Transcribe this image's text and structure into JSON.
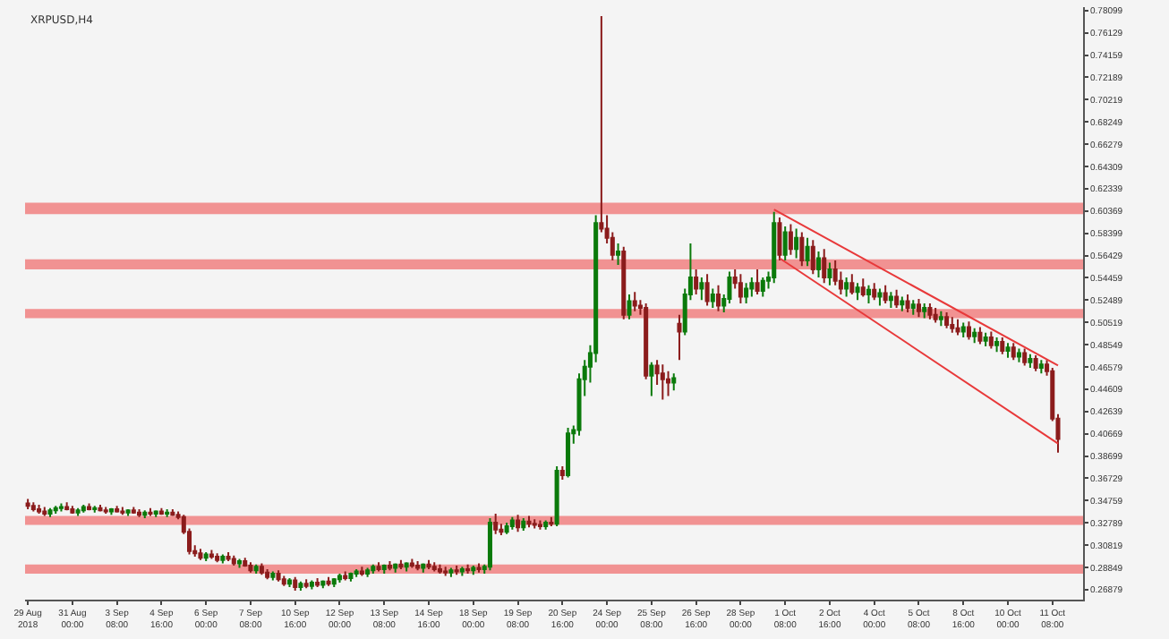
{
  "chart_data": {
    "type": "candlestick",
    "title": "XRPUSD,H4",
    "categories": [
      "29 Aug 2018",
      null,
      null,
      null,
      null,
      null,
      null,
      null,
      "31 Aug 00:00",
      null,
      null,
      null,
      null,
      null,
      null,
      null,
      "3 Sep 08:00",
      null,
      null,
      null,
      null,
      null,
      null,
      null,
      "4 Sep 16:00",
      null,
      null,
      null,
      null,
      null,
      null,
      null,
      "6 Sep 00:00",
      null,
      null,
      null,
      null,
      null,
      null,
      null,
      "7 Sep 08:00",
      null,
      null,
      null,
      null,
      null,
      null,
      null,
      "10 Sep 16:00",
      null,
      null,
      null,
      null,
      null,
      null,
      null,
      "12 Sep 00:00",
      null,
      null,
      null,
      null,
      null,
      null,
      null,
      "13 Sep 08:00",
      null,
      null,
      null,
      null,
      null,
      null,
      null,
      "14 Sep 16:00",
      null,
      null,
      null,
      null,
      null,
      null,
      null,
      "18 Sep 00:00",
      null,
      null,
      null,
      null,
      null,
      null,
      null,
      "19 Sep 08:00",
      null,
      null,
      null,
      null,
      null,
      null,
      null,
      "20 Sep 16:00",
      null,
      null,
      null,
      null,
      null,
      null,
      null,
      "24 Sep 00:00",
      null,
      null,
      null,
      null,
      null,
      null,
      null,
      "25 Sep 08:00",
      null,
      null,
      null,
      null,
      null,
      null,
      null,
      "26 Sep 16:00",
      null,
      null,
      null,
      null,
      null,
      null,
      null,
      "28 Sep 00:00",
      null,
      null,
      null,
      null,
      null,
      null,
      null,
      "1 Oct 08:00",
      null,
      null,
      null,
      null,
      null,
      null,
      null,
      "2 Oct 16:00",
      null,
      null,
      null,
      null,
      null,
      null,
      null,
      "4 Oct 00:00",
      null,
      null,
      null,
      null,
      null,
      null,
      null,
      "5 Oct 08:00",
      null,
      null,
      null,
      null,
      null,
      null,
      null,
      "8 Oct 16:00",
      null,
      null,
      null,
      null,
      null,
      null,
      null,
      "10 Oct 00:00",
      null,
      null,
      null,
      null,
      null,
      null,
      null,
      "11 Oct 08:00",
      null
    ],
    "ohlc": [
      [
        0.345,
        0.349,
        0.34,
        0.343
      ],
      [
        0.343,
        0.346,
        0.338,
        0.34
      ],
      [
        0.34,
        0.344,
        0.336,
        0.338
      ],
      [
        0.338,
        0.342,
        0.334,
        0.336
      ],
      [
        0.336,
        0.341,
        0.333,
        0.339
      ],
      [
        0.339,
        0.343,
        0.336,
        0.341
      ],
      [
        0.341,
        0.345,
        0.338,
        0.342
      ],
      [
        0.342,
        0.346,
        0.339,
        0.34
      ],
      [
        0.34,
        0.343,
        0.336,
        0.337
      ],
      [
        0.337,
        0.341,
        0.334,
        0.339
      ],
      [
        0.339,
        0.344,
        0.337,
        0.342
      ],
      [
        0.342,
        0.345,
        0.339,
        0.34
      ],
      [
        0.34,
        0.343,
        0.337,
        0.341
      ],
      [
        0.341,
        0.344,
        0.338,
        0.339
      ],
      [
        0.339,
        0.342,
        0.336,
        0.338
      ],
      [
        0.338,
        0.341,
        0.335,
        0.34
      ],
      [
        0.34,
        0.343,
        0.337,
        0.338
      ],
      [
        0.338,
        0.342,
        0.335,
        0.337
      ],
      [
        0.337,
        0.34,
        0.334,
        0.339
      ],
      [
        0.339,
        0.342,
        0.336,
        0.337
      ],
      [
        0.337,
        0.34,
        0.333,
        0.335
      ],
      [
        0.335,
        0.339,
        0.332,
        0.337
      ],
      [
        0.337,
        0.341,
        0.334,
        0.336
      ],
      [
        0.336,
        0.339,
        0.333,
        0.338
      ],
      [
        0.338,
        0.341,
        0.335,
        0.336
      ],
      [
        0.336,
        0.34,
        0.333,
        0.337
      ],
      [
        0.337,
        0.34,
        0.334,
        0.335
      ],
      [
        0.335,
        0.338,
        0.331,
        0.333
      ],
      [
        0.333,
        0.335,
        0.318,
        0.32
      ],
      [
        0.32,
        0.323,
        0.3,
        0.303
      ],
      [
        0.303,
        0.308,
        0.298,
        0.301
      ],
      [
        0.301,
        0.305,
        0.295,
        0.297
      ],
      [
        0.297,
        0.302,
        0.294,
        0.3
      ],
      [
        0.3,
        0.304,
        0.296,
        0.298
      ],
      [
        0.298,
        0.301,
        0.293,
        0.295
      ],
      [
        0.295,
        0.3,
        0.292,
        0.298
      ],
      [
        0.298,
        0.302,
        0.294,
        0.296
      ],
      [
        0.296,
        0.299,
        0.29,
        0.292
      ],
      [
        0.292,
        0.296,
        0.288,
        0.294
      ],
      [
        0.294,
        0.297,
        0.289,
        0.29
      ],
      [
        0.29,
        0.293,
        0.284,
        0.286
      ],
      [
        0.286,
        0.291,
        0.283,
        0.289
      ],
      [
        0.289,
        0.292,
        0.282,
        0.284
      ],
      [
        0.284,
        0.287,
        0.278,
        0.28
      ],
      [
        0.28,
        0.285,
        0.277,
        0.283
      ],
      [
        0.283,
        0.286,
        0.276,
        0.278
      ],
      [
        0.278,
        0.281,
        0.272,
        0.274
      ],
      [
        0.274,
        0.279,
        0.271,
        0.277
      ],
      [
        0.277,
        0.28,
        0.268,
        0.271
      ],
      [
        0.271,
        0.276,
        0.268,
        0.274
      ],
      [
        0.274,
        0.278,
        0.27,
        0.272
      ],
      [
        0.272,
        0.277,
        0.269,
        0.275
      ],
      [
        0.275,
        0.279,
        0.271,
        0.273
      ],
      [
        0.273,
        0.277,
        0.27,
        0.276
      ],
      [
        0.276,
        0.28,
        0.272,
        0.274
      ],
      [
        0.274,
        0.279,
        0.271,
        0.278
      ],
      [
        0.278,
        0.283,
        0.275,
        0.281
      ],
      [
        0.281,
        0.285,
        0.277,
        0.279
      ],
      [
        0.279,
        0.284,
        0.276,
        0.283
      ],
      [
        0.283,
        0.287,
        0.28,
        0.285
      ],
      [
        0.285,
        0.289,
        0.281,
        0.283
      ],
      [
        0.283,
        0.288,
        0.28,
        0.286
      ],
      [
        0.286,
        0.291,
        0.283,
        0.289
      ],
      [
        0.289,
        0.293,
        0.285,
        0.287
      ],
      [
        0.287,
        0.291,
        0.283,
        0.29
      ],
      [
        0.29,
        0.294,
        0.286,
        0.288
      ],
      [
        0.288,
        0.292,
        0.284,
        0.291
      ],
      [
        0.291,
        0.295,
        0.287,
        0.289
      ],
      [
        0.289,
        0.293,
        0.285,
        0.292
      ],
      [
        0.292,
        0.296,
        0.288,
        0.29
      ],
      [
        0.29,
        0.294,
        0.286,
        0.288
      ],
      [
        0.288,
        0.292,
        0.284,
        0.291
      ],
      [
        0.291,
        0.295,
        0.287,
        0.289
      ],
      [
        0.289,
        0.293,
        0.285,
        0.287
      ],
      [
        0.287,
        0.291,
        0.283,
        0.285
      ],
      [
        0.285,
        0.289,
        0.281,
        0.284
      ],
      [
        0.284,
        0.288,
        0.28,
        0.286
      ],
      [
        0.286,
        0.29,
        0.282,
        0.285
      ],
      [
        0.285,
        0.289,
        0.281,
        0.287
      ],
      [
        0.287,
        0.291,
        0.283,
        0.286
      ],
      [
        0.286,
        0.29,
        0.282,
        0.288
      ],
      [
        0.288,
        0.292,
        0.284,
        0.287
      ],
      [
        0.287,
        0.291,
        0.283,
        0.289
      ],
      [
        0.289,
        0.332,
        0.286,
        0.328
      ],
      [
        0.328,
        0.336,
        0.318,
        0.322
      ],
      [
        0.322,
        0.327,
        0.317,
        0.32
      ],
      [
        0.32,
        0.328,
        0.318,
        0.325
      ],
      [
        0.325,
        0.333,
        0.322,
        0.33
      ],
      [
        0.33,
        0.335,
        0.32,
        0.324
      ],
      [
        0.324,
        0.332,
        0.321,
        0.329
      ],
      [
        0.329,
        0.334,
        0.324,
        0.327
      ],
      [
        0.327,
        0.331,
        0.323,
        0.326
      ],
      [
        0.326,
        0.33,
        0.322,
        0.325
      ],
      [
        0.325,
        0.33,
        0.322,
        0.328
      ],
      [
        0.328,
        0.333,
        0.325,
        0.327
      ],
      [
        0.327,
        0.378,
        0.325,
        0.374
      ],
      [
        0.374,
        0.378,
        0.366,
        0.37
      ],
      [
        0.37,
        0.412,
        0.368,
        0.407
      ],
      [
        0.407,
        0.414,
        0.398,
        0.41
      ],
      [
        0.41,
        0.46,
        0.405,
        0.455
      ],
      [
        0.455,
        0.472,
        0.44,
        0.466
      ],
      [
        0.466,
        0.485,
        0.452,
        0.478
      ],
      [
        0.478,
        0.6,
        0.47,
        0.593
      ],
      [
        0.593,
        0.776,
        0.585,
        0.588
      ],
      [
        0.588,
        0.6,
        0.575,
        0.58
      ],
      [
        0.58,
        0.585,
        0.56,
        0.565
      ],
      [
        0.565,
        0.575,
        0.556,
        0.568
      ],
      [
        0.568,
        0.572,
        0.508,
        0.512
      ],
      [
        0.512,
        0.53,
        0.508,
        0.524
      ],
      [
        0.524,
        0.532,
        0.515,
        0.52
      ],
      [
        0.52,
        0.525,
        0.512,
        0.518
      ],
      [
        0.518,
        0.522,
        0.455,
        0.458
      ],
      [
        0.458,
        0.47,
        0.44,
        0.467
      ],
      [
        0.467,
        0.472,
        0.45,
        0.46
      ],
      [
        0.46,
        0.468,
        0.437,
        0.455
      ],
      [
        0.455,
        0.462,
        0.44,
        0.452
      ],
      [
        0.452,
        0.46,
        0.445,
        0.456
      ],
      [
        0.504,
        0.512,
        0.472,
        0.497
      ],
      [
        0.497,
        0.535,
        0.494,
        0.53
      ],
      [
        0.53,
        0.575,
        0.525,
        0.545
      ],
      [
        0.545,
        0.552,
        0.53,
        0.535
      ],
      [
        0.535,
        0.545,
        0.525,
        0.54
      ],
      [
        0.54,
        0.548,
        0.52,
        0.524
      ],
      [
        0.524,
        0.535,
        0.518,
        0.53
      ],
      [
        0.53,
        0.538,
        0.515,
        0.52
      ],
      [
        0.52,
        0.53,
        0.514,
        0.526
      ],
      [
        0.526,
        0.55,
        0.522,
        0.545
      ],
      [
        0.545,
        0.552,
        0.535,
        0.54
      ],
      [
        0.54,
        0.548,
        0.522,
        0.528
      ],
      [
        0.528,
        0.54,
        0.522,
        0.535
      ],
      [
        0.535,
        0.545,
        0.528,
        0.54
      ],
      [
        0.54,
        0.552,
        0.53,
        0.533
      ],
      [
        0.533,
        0.545,
        0.528,
        0.542
      ],
      [
        0.542,
        0.55,
        0.535,
        0.545
      ],
      [
        0.545,
        0.603,
        0.54,
        0.593
      ],
      [
        0.593,
        0.598,
        0.56,
        0.565
      ],
      [
        0.565,
        0.59,
        0.56,
        0.585
      ],
      [
        0.585,
        0.592,
        0.565,
        0.57
      ],
      [
        0.57,
        0.588,
        0.562,
        0.58
      ],
      [
        0.58,
        0.585,
        0.555,
        0.56
      ],
      [
        0.56,
        0.58,
        0.555,
        0.572
      ],
      [
        0.572,
        0.578,
        0.548,
        0.552
      ],
      [
        0.552,
        0.568,
        0.545,
        0.562
      ],
      [
        0.562,
        0.57,
        0.54,
        0.545
      ],
      [
        0.545,
        0.558,
        0.538,
        0.552
      ],
      [
        0.552,
        0.56,
        0.538,
        0.542
      ],
      [
        0.542,
        0.55,
        0.53,
        0.535
      ],
      [
        0.535,
        0.545,
        0.528,
        0.54
      ],
      [
        0.54,
        0.548,
        0.53,
        0.532
      ],
      [
        0.532,
        0.54,
        0.525,
        0.536
      ],
      [
        0.536,
        0.544,
        0.528,
        0.53
      ],
      [
        0.53,
        0.538,
        0.522,
        0.534
      ],
      [
        0.534,
        0.54,
        0.525,
        0.528
      ],
      [
        0.528,
        0.535,
        0.52,
        0.531
      ],
      [
        0.531,
        0.538,
        0.522,
        0.525
      ],
      [
        0.525,
        0.532,
        0.518,
        0.528
      ],
      [
        0.528,
        0.534,
        0.518,
        0.521
      ],
      [
        0.521,
        0.528,
        0.515,
        0.524
      ],
      [
        0.524,
        0.53,
        0.514,
        0.518
      ],
      [
        0.518,
        0.525,
        0.512,
        0.521
      ],
      [
        0.521,
        0.526,
        0.51,
        0.515
      ],
      [
        0.515,
        0.522,
        0.509,
        0.518
      ],
      [
        0.518,
        0.522,
        0.508,
        0.512
      ],
      [
        0.512,
        0.518,
        0.505,
        0.508
      ],
      [
        0.508,
        0.515,
        0.502,
        0.51
      ],
      [
        0.51,
        0.514,
        0.5,
        0.503
      ],
      [
        0.503,
        0.51,
        0.496,
        0.5
      ],
      [
        0.5,
        0.508,
        0.494,
        0.497
      ],
      [
        0.497,
        0.505,
        0.492,
        0.501
      ],
      [
        0.501,
        0.506,
        0.49,
        0.493
      ],
      [
        0.493,
        0.5,
        0.487,
        0.496
      ],
      [
        0.496,
        0.501,
        0.486,
        0.489
      ],
      [
        0.489,
        0.496,
        0.484,
        0.492
      ],
      [
        0.492,
        0.497,
        0.482,
        0.485
      ],
      [
        0.485,
        0.492,
        0.479,
        0.488
      ],
      [
        0.488,
        0.492,
        0.477,
        0.48
      ],
      [
        0.48,
        0.487,
        0.474,
        0.483
      ],
      [
        0.483,
        0.487,
        0.472,
        0.475
      ],
      [
        0.475,
        0.482,
        0.47,
        0.478
      ],
      [
        0.478,
        0.482,
        0.467,
        0.47
      ],
      [
        0.47,
        0.477,
        0.465,
        0.473
      ],
      [
        0.473,
        0.476,
        0.462,
        0.465
      ],
      [
        0.465,
        0.472,
        0.46,
        0.468
      ],
      [
        0.468,
        0.472,
        0.458,
        0.462
      ],
      [
        0.462,
        0.465,
        0.418,
        0.42
      ],
      [
        0.42,
        0.424,
        0.39,
        0.402
      ]
    ],
    "series": [
      {
        "type": "line",
        "color": "#e8393a",
        "values": [
          null,
          null,
          null,
          null,
          null,
          null,
          null,
          null,
          null,
          null,
          null,
          null,
          null,
          null,
          null,
          null,
          null,
          null,
          null,
          null,
          null,
          null,
          null,
          null,
          null,
          null,
          null,
          null,
          null,
          null,
          null,
          null,
          null,
          null,
          null,
          null,
          null,
          null,
          null,
          null,
          null,
          null,
          null,
          null,
          null,
          null,
          null,
          null,
          null,
          null,
          null,
          null,
          null,
          null,
          null,
          null,
          null,
          null,
          null,
          null,
          null,
          null,
          null,
          null,
          null,
          null,
          null,
          null,
          null,
          null,
          null,
          null,
          null,
          null,
          null,
          null,
          null,
          null,
          null,
          null,
          null,
          null,
          null,
          null,
          null,
          null,
          null,
          null,
          null,
          null,
          null,
          null,
          null,
          null,
          null,
          null,
          null,
          null,
          null,
          null,
          null,
          null,
          null,
          null,
          null,
          null,
          null,
          null,
          null,
          null,
          null,
          null,
          null,
          null,
          null,
          null,
          null,
          null,
          null,
          null,
          null,
          null,
          null,
          null,
          null,
          null,
          null,
          null,
          null,
          null,
          null,
          null,
          null,
          null,
          0.605,
          null,
          null,
          null,
          null,
          null,
          null,
          null,
          null,
          null,
          null,
          null,
          null,
          null,
          null,
          null,
          null,
          null,
          null,
          null,
          null,
          null,
          null,
          null,
          null,
          null,
          null,
          null,
          null,
          null,
          null,
          null,
          null,
          null,
          null,
          null,
          null,
          null,
          null,
          null,
          null,
          null,
          null,
          null,
          null,
          null,
          null,
          null,
          null,
          null,
          null,
          0.467
        ]
      },
      {
        "type": "line",
        "color": "#e8393a",
        "values": [
          null,
          null,
          null,
          null,
          null,
          null,
          null,
          null,
          null,
          null,
          null,
          null,
          null,
          null,
          null,
          null,
          null,
          null,
          null,
          null,
          null,
          null,
          null,
          null,
          null,
          null,
          null,
          null,
          null,
          null,
          null,
          null,
          null,
          null,
          null,
          null,
          null,
          null,
          null,
          null,
          null,
          null,
          null,
          null,
          null,
          null,
          null,
          null,
          null,
          null,
          null,
          null,
          null,
          null,
          null,
          null,
          null,
          null,
          null,
          null,
          null,
          null,
          null,
          null,
          null,
          null,
          null,
          null,
          null,
          null,
          null,
          null,
          null,
          null,
          null,
          null,
          null,
          null,
          null,
          null,
          null,
          null,
          null,
          null,
          null,
          null,
          null,
          null,
          null,
          null,
          null,
          null,
          null,
          null,
          null,
          null,
          null,
          null,
          null,
          null,
          null,
          null,
          null,
          null,
          null,
          null,
          null,
          null,
          null,
          null,
          null,
          null,
          null,
          null,
          null,
          null,
          null,
          null,
          null,
          null,
          null,
          null,
          null,
          null,
          null,
          null,
          null,
          null,
          null,
          null,
          null,
          null,
          null,
          null,
          null,
          0.562,
          null,
          null,
          null,
          null,
          null,
          null,
          null,
          null,
          null,
          null,
          null,
          null,
          null,
          null,
          null,
          null,
          null,
          null,
          null,
          null,
          null,
          null,
          null,
          null,
          null,
          null,
          null,
          null,
          null,
          null,
          null,
          null,
          null,
          null,
          null,
          null,
          null,
          null,
          null,
          null,
          null,
          null,
          null,
          null,
          null,
          null,
          null,
          null,
          null,
          0.398
        ]
      }
    ],
    "bands": [
      {
        "axis": "y",
        "from": 0.601,
        "to": 0.611,
        "color": "#f08080"
      },
      {
        "axis": "y",
        "from": 0.552,
        "to": 0.561,
        "color": "#f08080"
      },
      {
        "axis": "y",
        "from": 0.509,
        "to": 0.517,
        "color": "#f08080"
      },
      {
        "axis": "y",
        "from": 0.326,
        "to": 0.334,
        "color": "#f08080"
      },
      {
        "axis": "y",
        "from": 0.283,
        "to": 0.291,
        "color": "#f08080"
      }
    ],
    "ylim": [
      0.26,
      0.784
    ],
    "yticks": [
      0.26879,
      0.28849,
      0.30819,
      0.32789,
      0.34759,
      0.36729,
      0.38699,
      0.40669,
      0.42639,
      0.44609,
      0.46579,
      0.48549,
      0.50519,
      0.52489,
      0.54459,
      0.56429,
      0.58399,
      0.60369,
      0.62339,
      0.64309,
      0.66279,
      0.68249,
      0.70219,
      0.72189,
      0.74159,
      0.76129,
      0.78099
    ],
    "grid": false
  }
}
